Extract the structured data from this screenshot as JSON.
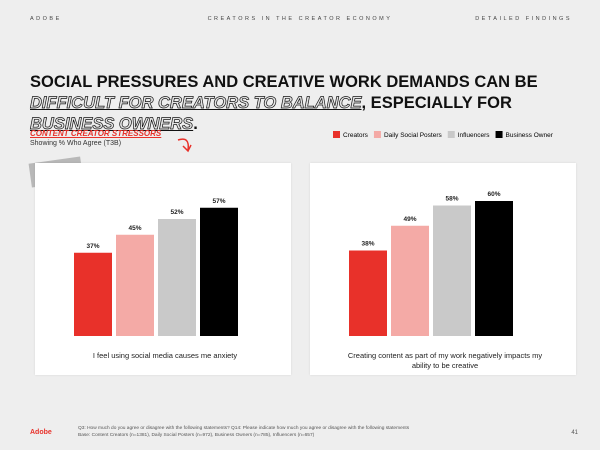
{
  "header": {
    "brand": "ADOBE",
    "report": "CREATORS IN THE CREATOR ECONOMY",
    "section": "DETAILED FINDINGS"
  },
  "title_parts": [
    "SOCIAL PRESSURES AND CREATIVE WORK DEMANDS CAN BE ",
    "DIFFICULT FOR CREATORS TO BALANCE",
    ", ESPECIALLY FOR ",
    "BUSINESS OWNERS",
    "."
  ],
  "chart_data": {
    "type": "bar",
    "title": "CONTENT CREATOR STRESSORS",
    "subtitle": "Showing % Who Agree (T3B)",
    "categories": [
      "I feel using social media causes me anxiety",
      "Creating content as part of my work negatively impacts my ability to be creative"
    ],
    "series": [
      {
        "name": "Creators",
        "color": "#e8312a",
        "values": [
          37,
          38
        ],
        "value_labels": [
          "37%",
          "38%"
        ]
      },
      {
        "name": "Daily Social Posters",
        "color": "#f4aaa6",
        "values": [
          45,
          49
        ],
        "value_labels": [
          "45%",
          "49%"
        ]
      },
      {
        "name": "Influencers",
        "color": "#c9c9c9",
        "values": [
          52,
          58
        ],
        "value_labels": [
          "52%",
          "58%"
        ]
      },
      {
        "name": "Business Owner",
        "color": "#000000",
        "values": [
          57,
          60
        ],
        "value_labels": [
          "57%",
          "60%"
        ]
      }
    ]
  },
  "footer": {
    "logo": "Adobe",
    "note": "Q3: How much do you agree or disagree with the following statements? Q14: Please indicate how much you agree or disagree with the following statements",
    "base": "Base: Content Creators (n=1381), Daily Social Posters (n=972), Business Owners (n=785), Influencers (n=657)",
    "page": "41"
  }
}
